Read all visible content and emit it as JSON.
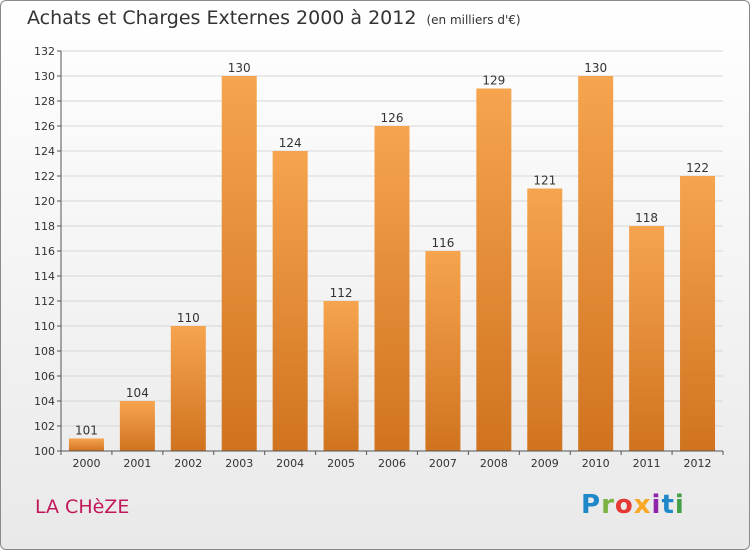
{
  "header": {
    "title": "Achats et Charges Externes 2000 à 2012",
    "unit": "(en milliers d'€)"
  },
  "place": "LA CHèZE",
  "logo": {
    "letters": [
      "P",
      "r",
      "o",
      "x",
      "i",
      "t",
      "i"
    ],
    "colors": [
      "#1e88c8",
      "#7cb342",
      "#e53935",
      "#f9a825",
      "#8e24aa",
      "#1e88c8",
      "#43a047"
    ]
  },
  "colors": {
    "bar_light": "#f6a44f",
    "bar_dark": "#d0731f",
    "grid": "#d6d6d6",
    "axis": "#555555",
    "place_text": "#c2185b"
  },
  "chart_data": {
    "type": "bar",
    "categories": [
      "2000",
      "2001",
      "2002",
      "2003",
      "2004",
      "2005",
      "2006",
      "2007",
      "2008",
      "2009",
      "2010",
      "2011",
      "2012"
    ],
    "values": [
      101,
      104,
      110,
      130,
      124,
      112,
      126,
      116,
      129,
      121,
      130,
      118,
      122
    ],
    "data_labels": [
      "101",
      "104",
      "110",
      "130",
      "124",
      "112",
      "126",
      "116",
      "129",
      "121",
      "130",
      "118",
      "122"
    ],
    "title": "Achats et Charges Externes 2000 à 2012",
    "xlabel": "",
    "ylabel": "",
    "ylim": [
      100,
      132
    ],
    "yticks": [
      100,
      102,
      104,
      106,
      108,
      110,
      112,
      114,
      116,
      118,
      120,
      122,
      124,
      126,
      128,
      130,
      132
    ],
    "grid": true,
    "legend": "none"
  }
}
